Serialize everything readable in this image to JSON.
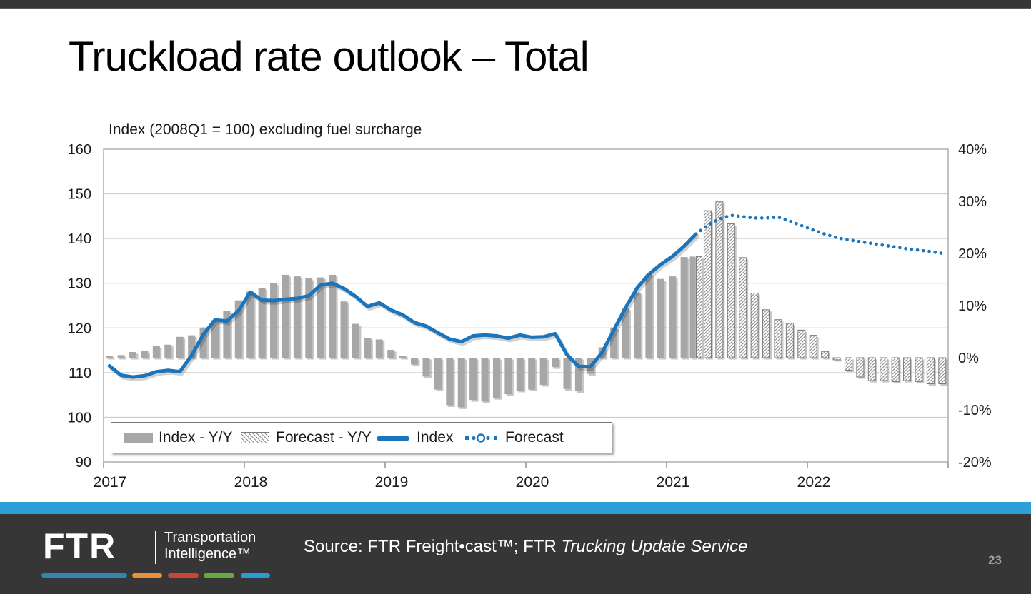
{
  "slide": {
    "title": "Truckload rate outlook – Total",
    "page_number": "23"
  },
  "chart_data": {
    "type": "combo-bar-line",
    "title": "Index (2008Q1 = 100) excluding fuel surcharge",
    "start_month": "2017-01",
    "months_span": 72,
    "grid": "horizontal",
    "legend_position": "inside-bottom-left",
    "x_tick_labels": [
      "2017",
      "2018",
      "2019",
      "2020",
      "2021",
      "2022"
    ],
    "left_axis": {
      "min": 90,
      "max": 160,
      "ticks": [
        "160",
        "150",
        "140",
        "130",
        "120",
        "110",
        "100",
        "90"
      ]
    },
    "right_axis": {
      "min": -20,
      "max": 40,
      "ticks": [
        "40%",
        "30%",
        "20%",
        "10%",
        "0%",
        "-10%",
        "-20%"
      ]
    },
    "series": [
      {
        "name": "Index - Y/Y",
        "type": "bar",
        "axis": "right",
        "unit": "%",
        "style": "solid-gray",
        "values": [
          0.3,
          0.5,
          1.1,
          1.3,
          2.2,
          2.5,
          4.0,
          4.3,
          5.8,
          7.2,
          9.0,
          11.0,
          12.7,
          13.4,
          14.3,
          15.9,
          15.6,
          15.2,
          15.4,
          15.9,
          10.8,
          6.5,
          3.8,
          3.5,
          1.5,
          0.4,
          -1.3,
          -3.6,
          -6.1,
          -9.1,
          -9.5,
          -8.1,
          -8.4,
          -7.7,
          -7.0,
          -6.3,
          -6.1,
          -5.2,
          -1.8,
          -6.0,
          -6.4,
          -3.1,
          2.0,
          5.8,
          9.5,
          12.5,
          16.0,
          15.1,
          15.6,
          19.3,
          19.4,
          null,
          null,
          null,
          null,
          null,
          null,
          null,
          null,
          null,
          null,
          null,
          null,
          null,
          null,
          null,
          null,
          null,
          null,
          null,
          null,
          null
        ]
      },
      {
        "name": "Forecast - Y/Y",
        "type": "bar",
        "axis": "right",
        "unit": "%",
        "style": "hatched",
        "values": [
          null,
          null,
          null,
          null,
          null,
          null,
          null,
          null,
          null,
          null,
          null,
          null,
          null,
          null,
          null,
          null,
          null,
          null,
          null,
          null,
          null,
          null,
          null,
          null,
          null,
          null,
          null,
          null,
          null,
          null,
          null,
          null,
          null,
          null,
          null,
          null,
          null,
          null,
          null,
          null,
          null,
          null,
          null,
          null,
          null,
          null,
          null,
          null,
          null,
          null,
          19.4,
          28.2,
          29.9,
          25.7,
          19.2,
          12.4,
          9.2,
          7.3,
          6.6,
          5.3,
          4.3,
          1.2,
          -0.4,
          -2.4,
          -3.7,
          -4.4,
          -4.4,
          -4.6,
          -4.4,
          -4.6,
          -5.0,
          -5.0
        ]
      },
      {
        "name": "Index",
        "type": "line",
        "axis": "left",
        "style": "solid",
        "values": [
          111.5,
          109.4,
          109.0,
          109.3,
          110.2,
          110.5,
          110.2,
          113.8,
          118.5,
          121.8,
          121.5,
          123.8,
          128.0,
          126.2,
          126.1,
          126.4,
          126.6,
          127.2,
          129.6,
          130.0,
          128.8,
          127.0,
          124.8,
          125.6,
          124.0,
          122.9,
          121.2,
          120.4,
          118.9,
          117.5,
          116.9,
          118.2,
          118.4,
          118.2,
          117.7,
          118.4,
          117.9,
          118.0,
          118.7,
          114.0,
          111.4,
          111.3,
          114.5,
          119.5,
          124.5,
          129.0,
          132.0,
          134.2,
          136.0,
          138.3,
          141.0,
          null,
          null,
          null,
          null,
          null,
          null,
          null,
          null,
          null,
          null,
          null,
          null,
          null,
          null,
          null,
          null,
          null,
          null,
          null,
          null,
          null
        ]
      },
      {
        "name": "Forecast",
        "type": "line",
        "axis": "left",
        "style": "dotted",
        "values": [
          null,
          null,
          null,
          null,
          null,
          null,
          null,
          null,
          null,
          null,
          null,
          null,
          null,
          null,
          null,
          null,
          null,
          null,
          null,
          null,
          null,
          null,
          null,
          null,
          null,
          null,
          null,
          null,
          null,
          null,
          null,
          null,
          null,
          null,
          null,
          null,
          null,
          null,
          null,
          null,
          null,
          null,
          null,
          null,
          null,
          null,
          null,
          null,
          null,
          null,
          141.0,
          143.0,
          144.4,
          145.2,
          144.9,
          144.6,
          144.6,
          144.8,
          143.9,
          142.9,
          141.9,
          141.0,
          140.2,
          139.7,
          139.3,
          138.9,
          138.5,
          138.1,
          137.7,
          137.4,
          137.1,
          136.7
        ]
      }
    ]
  },
  "footer": {
    "logo_text": "FTR",
    "logo_sub1": "Transportation",
    "logo_sub2": "Intelligence™",
    "source_prefix": "Source: FTR Freight•cast™; FTR ",
    "source_italic": "Trucking Update Service"
  },
  "colors": {
    "line_blue": "#1B75BC",
    "bar_gray": "#A7A7A7",
    "hatch_gray": "#8C8C8C",
    "hatch_border": "#7C7C7C",
    "grid": "#C6C6C6",
    "plot_border": "#999999",
    "axis_text": "#1A1A1A",
    "top_bar": "#363636",
    "footer_bg": "#363636",
    "stripe_blue": "#2E9FD9",
    "dash_colors": [
      "#2E86B5",
      "#E8913A",
      "#CC4438",
      "#67A83F",
      "#2D9BD0"
    ],
    "page_number_gray": "#9F9F9F"
  }
}
